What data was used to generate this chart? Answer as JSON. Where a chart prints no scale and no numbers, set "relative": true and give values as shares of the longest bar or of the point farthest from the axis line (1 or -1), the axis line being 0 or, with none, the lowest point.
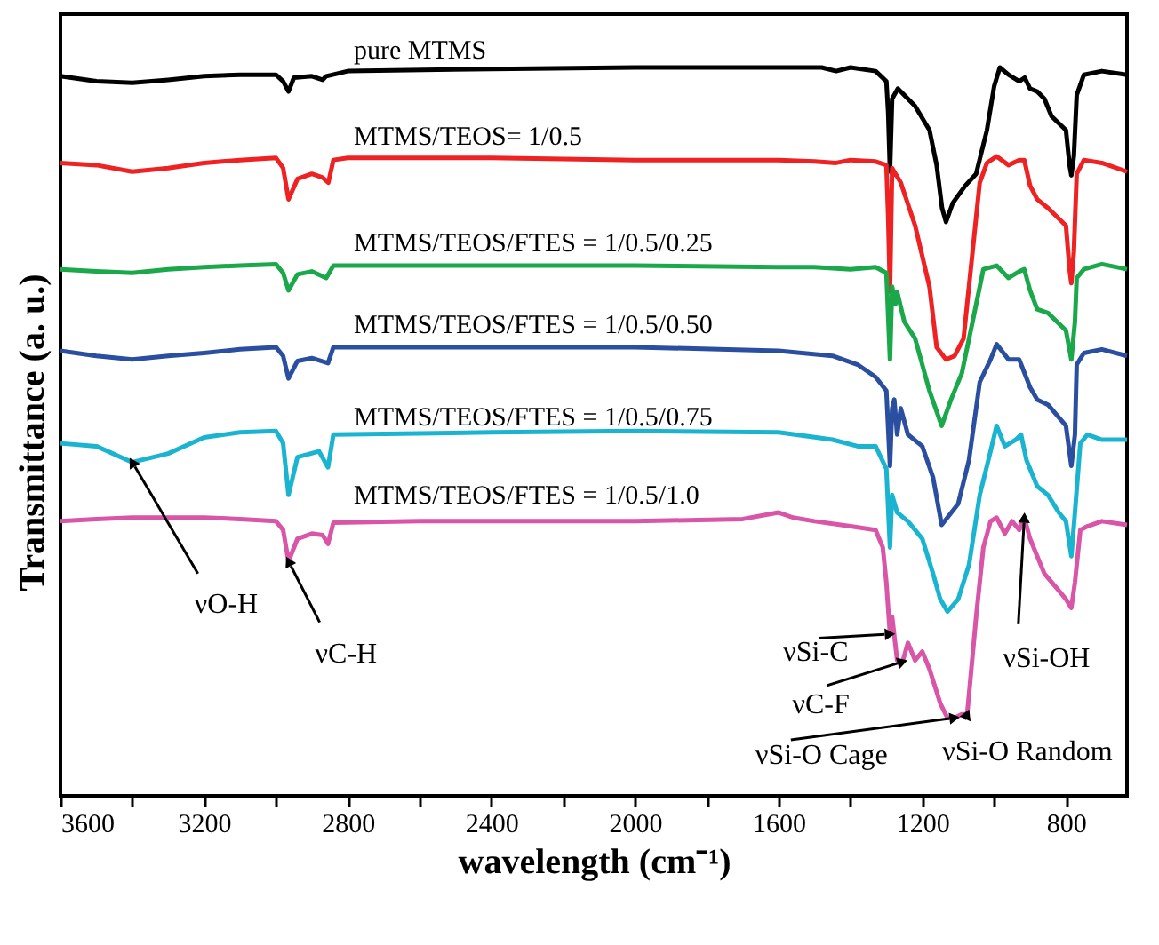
{
  "chart_data": {
    "type": "line",
    "relative": true,
    "xlabel": "wavelength (cm⁻¹)",
    "ylabel": "Transmittance (a. u.)",
    "xlim": [
      3600,
      630
    ],
    "xticks": [
      3600,
      {
        "value": 3400,
        "label": null
      },
      3200,
      {
        "value": 3000,
        "label": null
      },
      2800,
      {
        "value": 2600,
        "label": null
      },
      2400,
      {
        "value": 2200,
        "label": null
      },
      2000,
      {
        "value": 1800,
        "label": null
      },
      1600,
      {
        "value": 1400,
        "label": null
      },
      1200,
      {
        "value": 1000,
        "label": null
      },
      800
    ],
    "series": [
      {
        "name": "pure MTMS",
        "color": "#000000",
        "x": [
          3600,
          3500,
          3400,
          3300,
          3200,
          3100,
          3000,
          2980,
          2965,
          2950,
          2900,
          2870,
          2860,
          2800,
          2400,
          2000,
          1600,
          1480,
          1440,
          1400,
          1330,
          1300,
          1295,
          1290,
          1284,
          1268,
          1220,
          1180,
          1160,
          1145,
          1134,
          1115,
          1080,
          1050,
          1020,
          1000,
          984,
          960,
          930,
          915,
          900,
          880,
          860,
          840,
          800,
          790,
          785,
          778,
          770,
          750,
          700,
          630
        ],
        "values": [
          0.988,
          0.981,
          0.979,
          0.983,
          0.988,
          0.99,
          0.99,
          0.981,
          0.967,
          0.986,
          0.988,
          0.983,
          0.988,
          0.995,
          0.998,
          1.0,
          1.0,
          1.0,
          0.995,
          1.0,
          0.995,
          0.981,
          0.938,
          0.857,
          0.957,
          0.971,
          0.947,
          0.914,
          0.866,
          0.807,
          0.788,
          0.814,
          0.838,
          0.854,
          0.914,
          0.974,
          1.0,
          0.99,
          0.981,
          0.986,
          0.971,
          0.967,
          0.957,
          0.933,
          0.914,
          0.866,
          0.852,
          0.878,
          0.962,
          0.99,
          0.995,
          0.99
        ]
      },
      {
        "name": "MTMS/TEOS= 1/0.5",
        "color": "#ee2222",
        "x": [
          3600,
          3500,
          3400,
          3300,
          3200,
          3100,
          3000,
          2980,
          2965,
          2940,
          2900,
          2870,
          2854,
          2840,
          2800,
          2400,
          2000,
          1600,
          1500,
          1440,
          1400,
          1330,
          1300,
          1295,
          1290,
          1284,
          1260,
          1220,
          1180,
          1160,
          1134,
          1110,
          1085,
          1060,
          1040,
          1020,
          993,
          960,
          930,
          916,
          900,
          880,
          850,
          800,
          790,
          785,
          778,
          770,
          750,
          700,
          630
        ],
        "values": [
          0.869,
          0.866,
          0.857,
          0.862,
          0.869,
          0.873,
          0.876,
          0.862,
          0.819,
          0.847,
          0.854,
          0.849,
          0.842,
          0.873,
          0.876,
          0.876,
          0.873,
          0.873,
          0.871,
          0.869,
          0.873,
          0.871,
          0.866,
          0.795,
          0.692,
          0.862,
          0.842,
          0.783,
          0.699,
          0.616,
          0.599,
          0.604,
          0.628,
          0.747,
          0.842,
          0.869,
          0.878,
          0.866,
          0.873,
          0.873,
          0.838,
          0.819,
          0.807,
          0.783,
          0.723,
          0.704,
          0.747,
          0.854,
          0.873,
          0.869,
          0.857
        ]
      },
      {
        "name": "MTMS/TEOS/FTES = 1/0.5/0.25",
        "color": "#1aa84a",
        "x": [
          3600,
          3500,
          3400,
          3300,
          3200,
          3100,
          3000,
          2980,
          2965,
          2940,
          2900,
          2860,
          2840,
          2400,
          2000,
          1600,
          1500,
          1400,
          1330,
          1300,
          1290,
          1284,
          1275,
          1270,
          1250,
          1220,
          1180,
          1146,
          1120,
          1090,
          1060,
          1030,
          993,
          960,
          930,
          916,
          900,
          880,
          850,
          800,
          785,
          775,
          770,
          750,
          700,
          630
        ],
        "values": [
          0.723,
          0.72,
          0.718,
          0.723,
          0.726,
          0.728,
          0.73,
          0.718,
          0.694,
          0.716,
          0.72,
          0.711,
          0.728,
          0.728,
          0.728,
          0.726,
          0.726,
          0.723,
          0.726,
          0.718,
          0.599,
          0.699,
          0.675,
          0.692,
          0.651,
          0.628,
          0.556,
          0.508,
          0.544,
          0.58,
          0.651,
          0.723,
          0.728,
          0.711,
          0.72,
          0.723,
          0.694,
          0.668,
          0.663,
          0.639,
          0.599,
          0.651,
          0.711,
          0.723,
          0.73,
          0.723
        ]
      },
      {
        "name": "MTMS/TEOS/FTES = 1/0.5/0.50",
        "color": "#2a4ea0",
        "x": [
          3600,
          3500,
          3400,
          3300,
          3200,
          3100,
          3000,
          2980,
          2965,
          2940,
          2900,
          2855,
          2840,
          2400,
          2000,
          1600,
          1450,
          1380,
          1330,
          1300,
          1290,
          1284,
          1278,
          1270,
          1260,
          1240,
          1200,
          1170,
          1146,
          1100,
          1070,
          1040,
          1010,
          993,
          960,
          930,
          900,
          880,
          850,
          800,
          785,
          775,
          770,
          750,
          700,
          630
        ],
        "values": [
          0.611,
          0.604,
          0.599,
          0.604,
          0.608,
          0.613,
          0.616,
          0.604,
          0.573,
          0.597,
          0.601,
          0.594,
          0.616,
          0.616,
          0.616,
          0.611,
          0.604,
          0.592,
          0.575,
          0.556,
          0.453,
          0.532,
          0.544,
          0.496,
          0.532,
          0.496,
          0.48,
          0.437,
          0.372,
          0.401,
          0.461,
          0.568,
          0.599,
          0.62,
          0.599,
          0.599,
          0.561,
          0.544,
          0.537,
          0.508,
          0.453,
          0.496,
          0.592,
          0.608,
          0.613,
          0.604
        ]
      },
      {
        "name": "MTMS/TEOS/FTES = 1/0.5/0.75",
        "color": "#1ab4d0",
        "x": [
          3600,
          3500,
          3400,
          3300,
          3200,
          3100,
          3000,
          2980,
          2965,
          2940,
          2880,
          2855,
          2840,
          2400,
          2000,
          1600,
          1450,
          1380,
          1330,
          1300,
          1290,
          1284,
          1270,
          1240,
          1200,
          1170,
          1150,
          1130,
          1100,
          1070,
          1040,
          1010,
          993,
          970,
          940,
          925,
          910,
          880,
          850,
          820,
          800,
          785,
          775,
          760,
          740,
          700,
          630
        ],
        "values": [
          0.484,
          0.48,
          0.458,
          0.47,
          0.492,
          0.499,
          0.501,
          0.484,
          0.413,
          0.465,
          0.473,
          0.451,
          0.496,
          0.499,
          0.501,
          0.499,
          0.489,
          0.48,
          0.48,
          0.449,
          0.341,
          0.413,
          0.389,
          0.377,
          0.353,
          0.305,
          0.27,
          0.253,
          0.27,
          0.317,
          0.413,
          0.473,
          0.508,
          0.48,
          0.489,
          0.496,
          0.461,
          0.425,
          0.413,
          0.389,
          0.377,
          0.329,
          0.389,
          0.484,
          0.496,
          0.489,
          0.489
        ]
      },
      {
        "name": "MTMS/TEOS/FTES = 1/0.5/1.0",
        "color": "#d855a8",
        "x": [
          3600,
          3500,
          3400,
          3300,
          3200,
          3100,
          3000,
          2980,
          2965,
          2940,
          2900,
          2870,
          2855,
          2840,
          2600,
          2400,
          2000,
          1700,
          1600,
          1560,
          1500,
          1400,
          1330,
          1310,
          1300,
          1290,
          1284,
          1270,
          1255,
          1240,
          1220,
          1200,
          1180,
          1150,
          1130,
          1110,
          1090,
          1075,
          1050,
          1030,
          1010,
          993,
          970,
          950,
          930,
          916,
          900,
          880,
          860,
          820,
          800,
          785,
          775,
          760,
          740,
          700,
          630
        ],
        "values": [
          0.377,
          0.38,
          0.382,
          0.382,
          0.382,
          0.38,
          0.377,
          0.365,
          0.322,
          0.353,
          0.36,
          0.358,
          0.346,
          0.375,
          0.377,
          0.377,
          0.377,
          0.38,
          0.389,
          0.382,
          0.377,
          0.37,
          0.365,
          0.341,
          0.293,
          0.222,
          0.246,
          0.186,
          0.184,
          0.21,
          0.186,
          0.198,
          0.174,
          0.127,
          0.107,
          0.107,
          0.112,
          0.112,
          0.246,
          0.341,
          0.377,
          0.382,
          0.36,
          0.377,
          0.365,
          0.382,
          0.353,
          0.329,
          0.305,
          0.282,
          0.27,
          0.258,
          0.293,
          0.365,
          0.37,
          0.377,
          0.372
        ]
      }
    ],
    "annotations": [
      {
        "text": "νO-H",
        "x": 3400,
        "y": 0.458
      },
      {
        "text": "νC-H",
        "x": 2965,
        "y": 0.322
      },
      {
        "text": "νSi-C",
        "x": 1290,
        "y": 0.222
      },
      {
        "text": "νC-F",
        "x": 1255,
        "y": 0.184
      },
      {
        "text": "νSi-O Cage",
        "x": 1110,
        "y": 0.107
      },
      {
        "text": "νSi-O Random",
        "x": 1075,
        "y": 0.112
      },
      {
        "text": "νSi-OH",
        "x": 916,
        "y": 0.382
      }
    ]
  }
}
